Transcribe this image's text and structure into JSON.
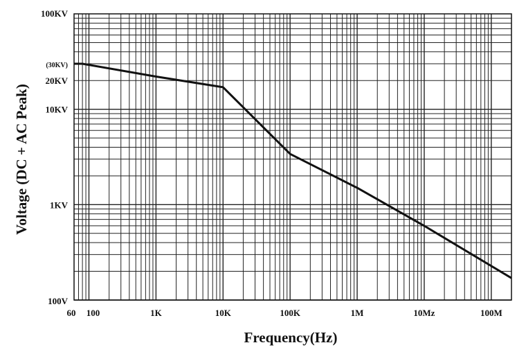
{
  "chart_data": {
    "type": "line",
    "title": "",
    "xlabel": "Frequency(Hz)",
    "ylabel": "Voltage (DC + AC Peak)",
    "x_scale": "log",
    "y_scale": "log",
    "xlim": [
      60,
      200000000
    ],
    "ylim": [
      100,
      100000
    ],
    "grid": true,
    "x_ticks": [
      {
        "value": 60,
        "label": "60"
      },
      {
        "value": 100,
        "label": "100"
      },
      {
        "value": 1000,
        "label": "1K"
      },
      {
        "value": 10000,
        "label": "10K"
      },
      {
        "value": 100000,
        "label": "100K"
      },
      {
        "value": 1000000,
        "label": "1M"
      },
      {
        "value": 10000000,
        "label": "10Mz"
      },
      {
        "value": 100000000,
        "label": "100M"
      }
    ],
    "y_ticks": [
      {
        "value": 100000,
        "label": "100KV"
      },
      {
        "value": 30000,
        "label": "(30KV)"
      },
      {
        "value": 20000,
        "label": "20KV"
      },
      {
        "value": 10000,
        "label": "10KV"
      },
      {
        "value": 1000,
        "label": "1KV"
      },
      {
        "value": 100,
        "label": "100V"
      }
    ],
    "series": [
      {
        "color": "#111111",
        "x": [
          60,
          80,
          1000,
          10000,
          100000,
          1000000,
          10000000,
          200000000
        ],
        "y": [
          30000,
          30000,
          22000,
          17000,
          3400,
          1500,
          600,
          170
        ]
      }
    ]
  }
}
